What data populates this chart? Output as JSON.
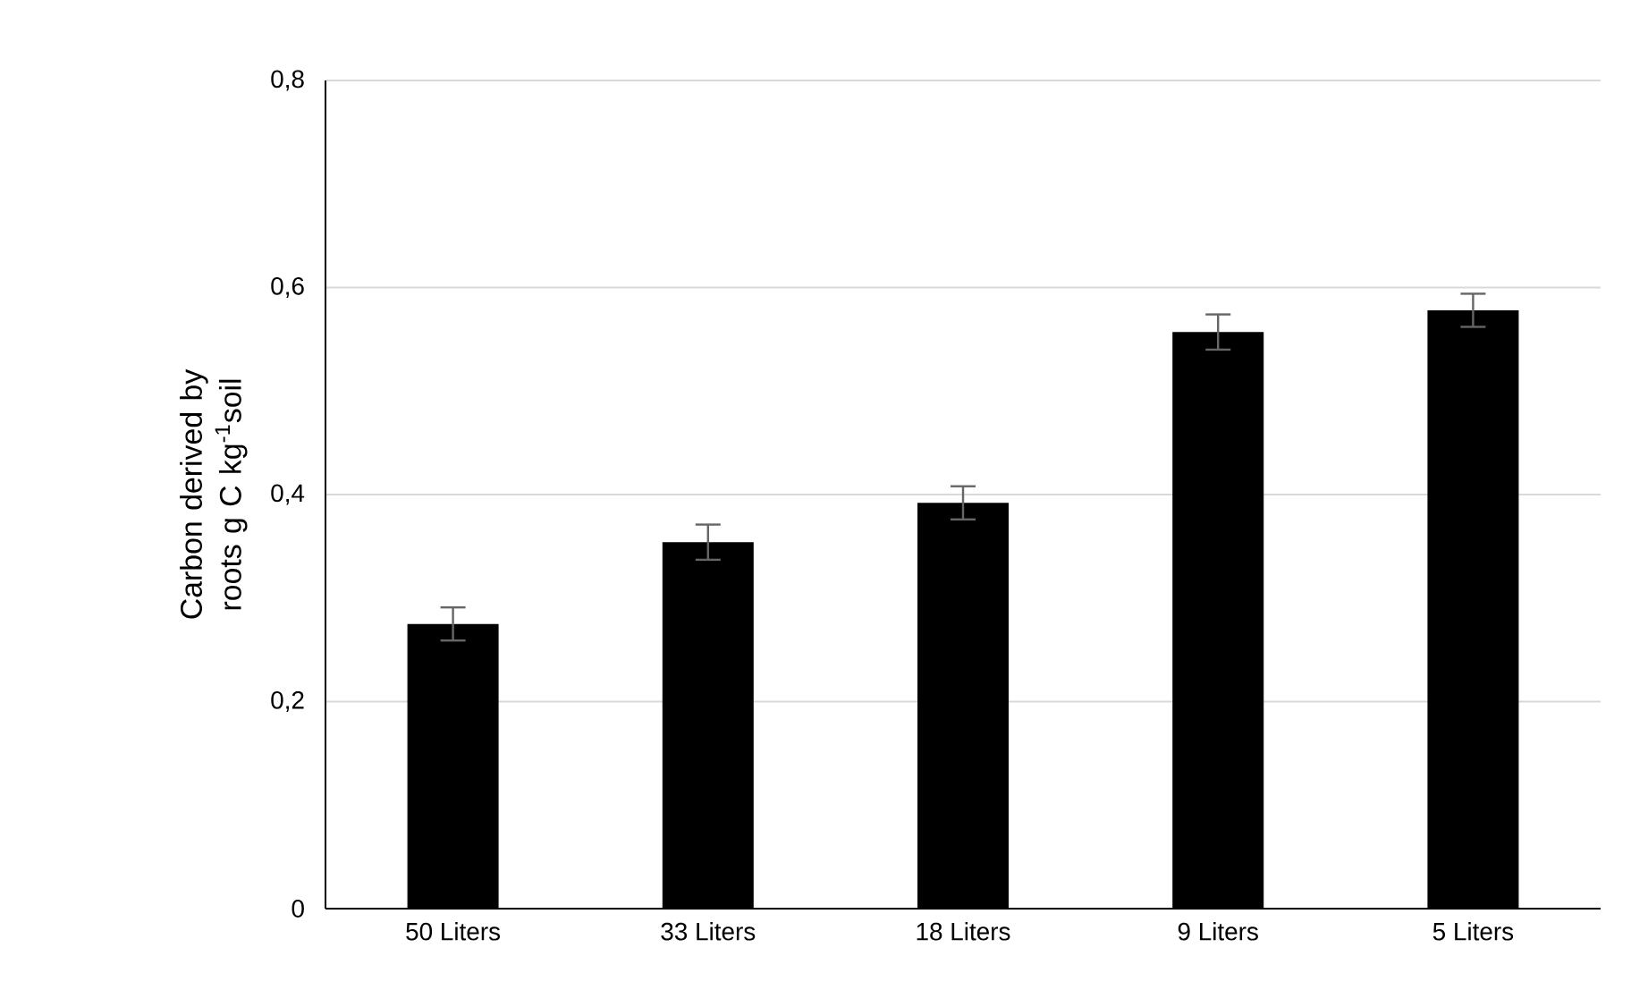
{
  "chart_data": {
    "type": "bar",
    "ylabel": "Carbon derived by roots g C kg$^{-1}$soil",
    "categories": [
      "50 Liters",
      "33 Liters",
      "18 Liters",
      "9 Liters",
      "5 Liters"
    ],
    "values": [
      0.275,
      0.354,
      0.392,
      0.557,
      0.578
    ],
    "errors": [
      0.016,
      0.017,
      0.016,
      0.017,
      0.016
    ],
    "color": "#000000",
    "ylim": [
      0,
      0.8
    ],
    "yticks": [
      0,
      {
        "value": 0.2,
        "label": "0,2"
      },
      {
        "value": 0.4,
        "label": "0,4"
      },
      {
        "value": 0.6,
        "label": "0,6"
      },
      {
        "value": 0.8,
        "label": "0,8"
      }
    ],
    "grid": "y"
  }
}
